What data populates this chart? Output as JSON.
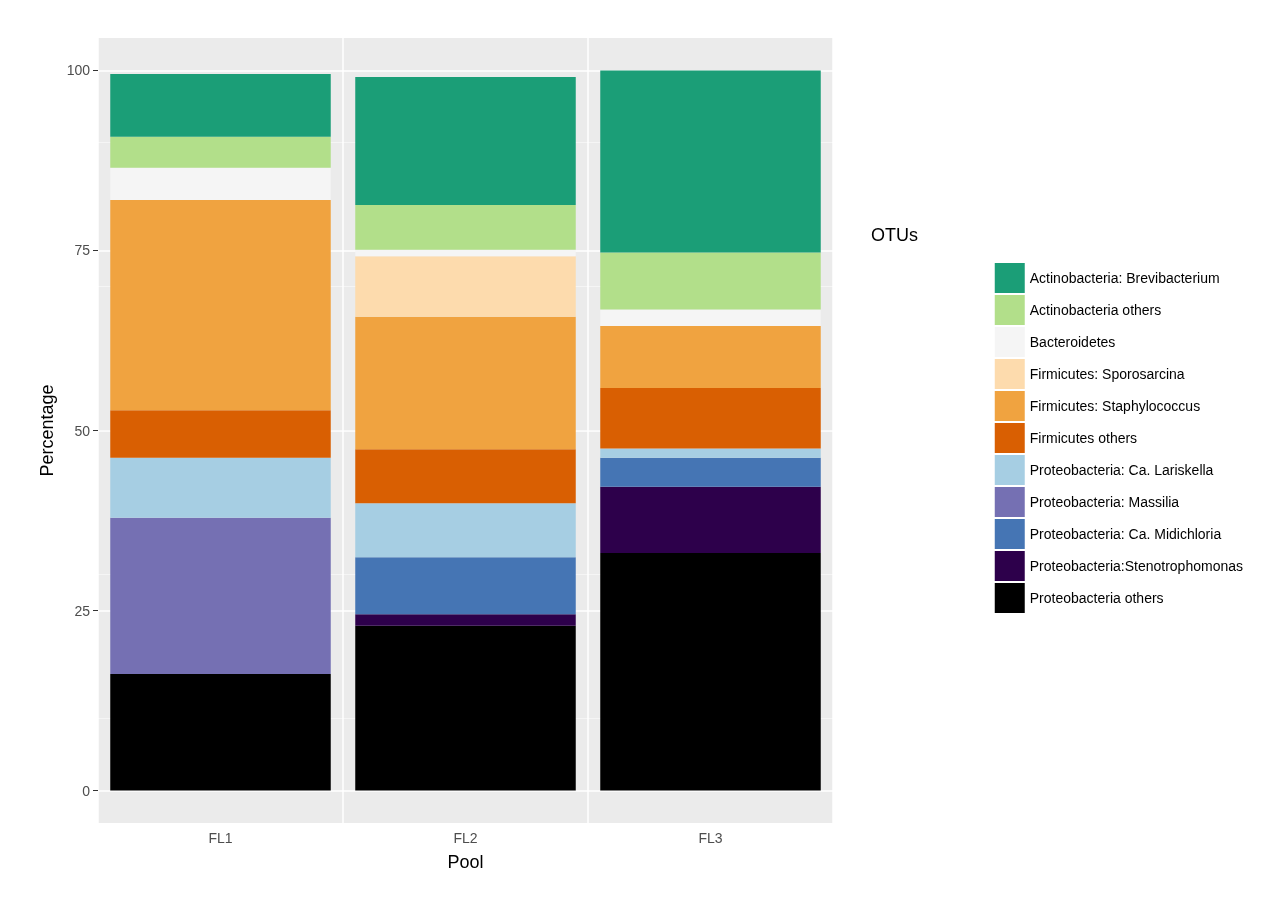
{
  "chart_data": {
    "type": "bar",
    "stacked": true,
    "xlabel": "Pool",
    "ylabel": "Percentage",
    "legend_title": "OTUs",
    "legend": "right",
    "grid": true,
    "categories": [
      "FL1",
      "FL2",
      "FL3"
    ],
    "ylim": [
      -4.5,
      104.5
    ],
    "yticks": [
      0,
      25,
      50,
      75,
      100
    ],
    "series": [
      {
        "name": "Proteobacteria others",
        "color": "#000000",
        "values": [
          16.2,
          22.9,
          33.0
        ]
      },
      {
        "name": "Proteobacteria:Stenotrophomonas",
        "color": "#2d004b",
        "values": [
          0,
          1.6,
          9.2
        ]
      },
      {
        "name": "Proteobacteria: Ca. Midichloria",
        "color": "#4575b4",
        "values": [
          0,
          7.9,
          4.0
        ]
      },
      {
        "name": "Proteobacteria: Massilia",
        "color": "#7570b3",
        "values": [
          21.7,
          0,
          0
        ]
      },
      {
        "name": "Proteobacteria: Ca. Lariskella",
        "color": "#a6cee3",
        "values": [
          8.3,
          7.5,
          1.3
        ]
      },
      {
        "name": "Firmicutes others",
        "color": "#d95f02",
        "values": [
          6.6,
          7.5,
          8.4
        ]
      },
      {
        "name": "Firmicutes: Staphylococcus",
        "color": "#f0a340",
        "values": [
          29.2,
          18.4,
          8.6
        ]
      },
      {
        "name": "Firmicutes: Sporosarcina",
        "color": "#fddbad",
        "values": [
          0,
          8.4,
          0
        ]
      },
      {
        "name": "Bacteroidetes",
        "color": "#f5f5f5",
        "values": [
          4.5,
          0.9,
          2.3
        ]
      },
      {
        "name": "Actinobacteria others",
        "color": "#b2df8a",
        "values": [
          4.3,
          6.2,
          7.9
        ]
      },
      {
        "name": "Actinobacteria: Brevibacterium",
        "color": "#1b9e77",
        "values": [
          8.7,
          17.8,
          25.3
        ]
      }
    ]
  }
}
